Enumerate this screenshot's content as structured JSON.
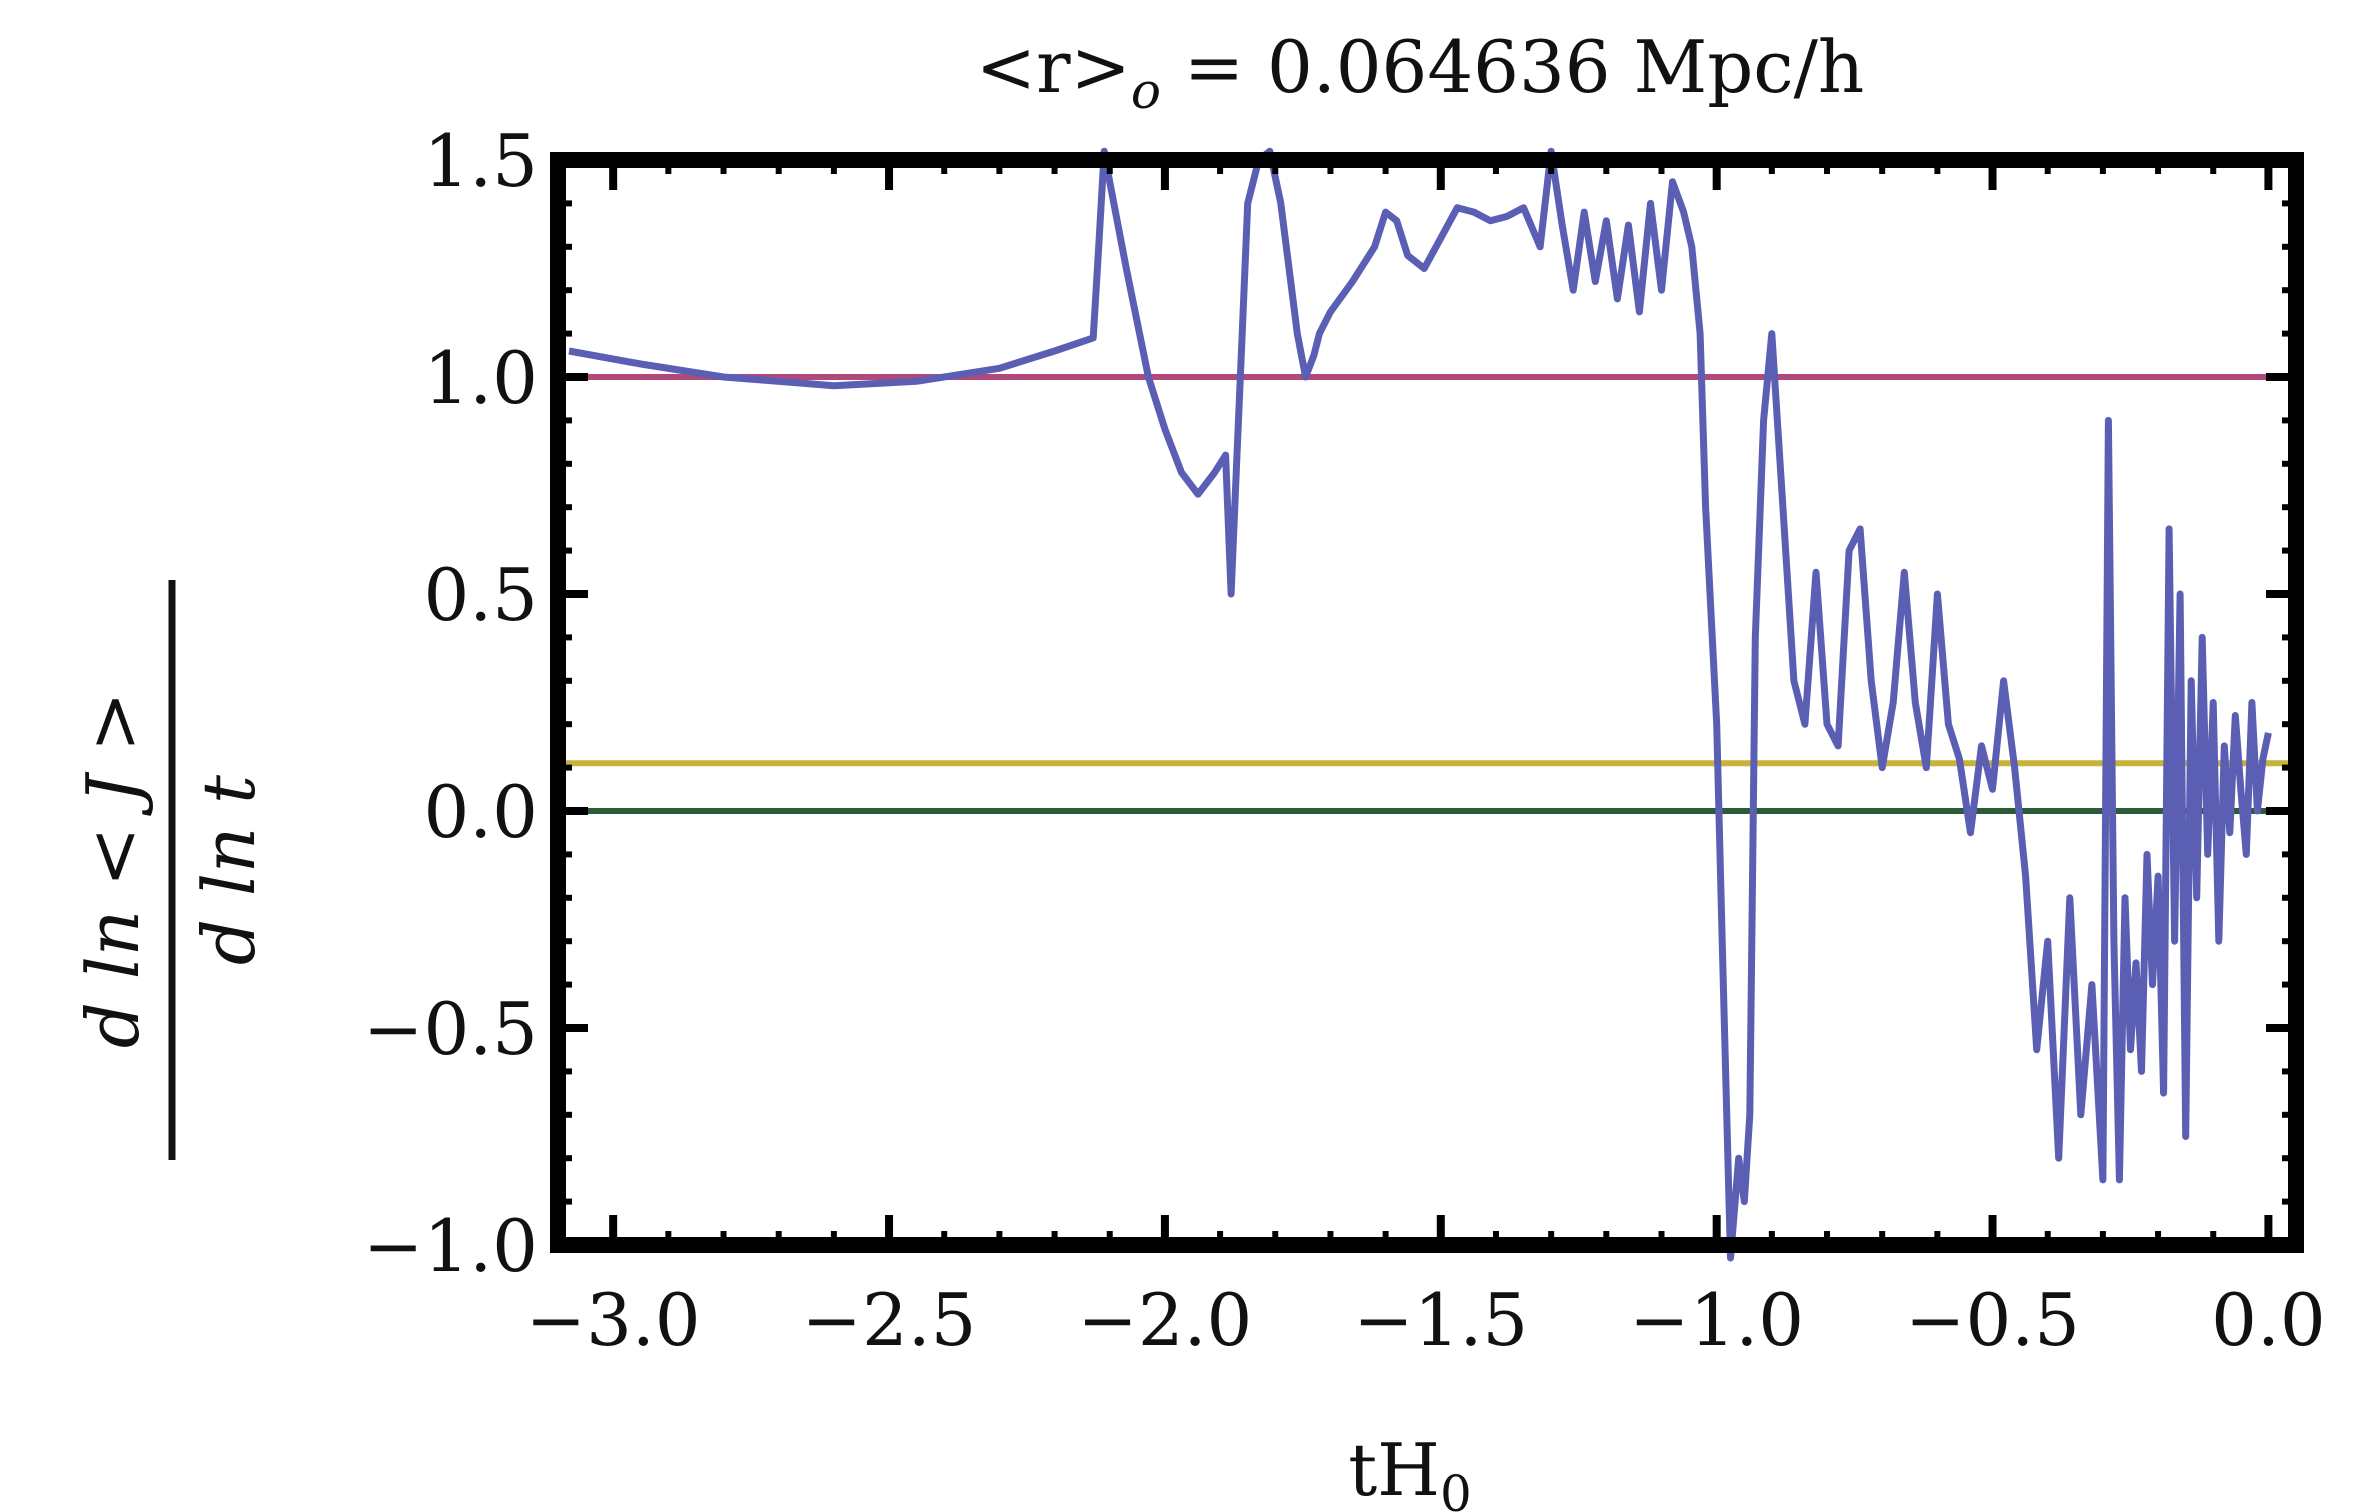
{
  "chart_data": {
    "type": "line",
    "title_prefix": "<r>",
    "title_subscript": "o",
    "title_value": " = 0.064636 Mpc/h",
    "xlabel_main": "tH",
    "xlabel_sub": "0",
    "ylabel_numerator": "d ln < J >",
    "ylabel_denominator": "d ln t",
    "xlim": [
      -3.1,
      0.05
    ],
    "ylim": [
      -1.0,
      1.5
    ],
    "xticks": [
      -3.0,
      -2.5,
      -2.0,
      -1.5,
      -1.0,
      -0.5,
      0.0
    ],
    "xtick_labels": [
      "−3.0",
      "−2.5",
      "−2.0",
      "−1.5",
      "−1.0",
      "−0.5",
      "0.0"
    ],
    "yticks": [
      -1.0,
      -0.5,
      0.0,
      0.5,
      1.0,
      1.5
    ],
    "ytick_labels": [
      "−1.0",
      "−0.5",
      "0.0",
      "0.5",
      "1.0",
      "1.5"
    ],
    "grid": false,
    "legend": "none",
    "colors": {
      "main_series": "#5b5fb4",
      "ref_one": "#b04a7a",
      "ref_gold": "#c8b33a",
      "ref_zero": "#2f5a3a"
    },
    "reference_lines": [
      {
        "y": 1.0,
        "color": "#b04a7a"
      },
      {
        "y": 0.11,
        "color": "#c8b33a"
      },
      {
        "y": 0.0,
        "color": "#2f5a3a"
      }
    ],
    "series": [
      {
        "x": [
          -3.08,
          -2.95,
          -2.8,
          -2.6,
          -2.45,
          -2.3,
          -2.2,
          -2.13,
          -2.12,
          -2.11,
          -2.1,
          -2.07,
          -2.03,
          -2.0,
          -1.97,
          -1.94,
          -1.91,
          -1.89,
          -1.88,
          -1.87,
          -1.86,
          -1.85,
          -1.83,
          -1.81,
          -1.79,
          -1.78,
          -1.77,
          -1.76,
          -1.745,
          -1.73,
          -1.72,
          -1.7,
          -1.66,
          -1.62,
          -1.6,
          -1.58,
          -1.56,
          -1.53,
          -1.5,
          -1.47,
          -1.44,
          -1.41,
          -1.38,
          -1.35,
          -1.32,
          -1.3,
          -1.28,
          -1.26,
          -1.24,
          -1.22,
          -1.2,
          -1.18,
          -1.16,
          -1.14,
          -1.12,
          -1.1,
          -1.08,
          -1.06,
          -1.045,
          -1.03,
          -1.02,
          -1.0,
          -0.99,
          -0.975,
          -0.96,
          -0.95,
          -0.94,
          -0.93,
          -0.915,
          -0.9,
          -0.88,
          -0.86,
          -0.84,
          -0.82,
          -0.8,
          -0.78,
          -0.76,
          -0.74,
          -0.72,
          -0.7,
          -0.68,
          -0.66,
          -0.64,
          -0.62,
          -0.6,
          -0.58,
          -0.56,
          -0.54,
          -0.52,
          -0.5,
          -0.48,
          -0.46,
          -0.44,
          -0.42,
          -0.4,
          -0.38,
          -0.36,
          -0.34,
          -0.32,
          -0.3,
          -0.29,
          -0.28,
          -0.27,
          -0.26,
          -0.25,
          -0.24,
          -0.23,
          -0.22,
          -0.21,
          -0.2,
          -0.19,
          -0.18,
          -0.17,
          -0.16,
          -0.15,
          -0.14,
          -0.13,
          -0.12,
          -0.11,
          -0.1,
          -0.09,
          -0.08,
          -0.07,
          -0.06,
          -0.05,
          -0.04,
          -0.03,
          -0.02,
          -0.01,
          0.0
        ],
        "y": [
          1.06,
          1.03,
          1.0,
          0.98,
          0.99,
          1.02,
          1.06,
          1.09,
          1.3,
          1.52,
          1.45,
          1.25,
          1.0,
          0.88,
          0.78,
          0.73,
          0.78,
          0.82,
          0.5,
          0.8,
          1.1,
          1.4,
          1.5,
          1.52,
          1.4,
          1.3,
          1.2,
          1.1,
          1.0,
          1.05,
          1.1,
          1.15,
          1.22,
          1.3,
          1.38,
          1.36,
          1.28,
          1.25,
          1.32,
          1.39,
          1.38,
          1.36,
          1.37,
          1.39,
          1.3,
          1.52,
          1.35,
          1.2,
          1.38,
          1.22,
          1.36,
          1.18,
          1.35,
          1.15,
          1.4,
          1.2,
          1.45,
          1.38,
          1.3,
          1.1,
          0.7,
          0.2,
          -0.3,
          -1.05,
          -0.8,
          -0.9,
          -0.7,
          0.4,
          0.9,
          1.1,
          0.7,
          0.3,
          0.2,
          0.55,
          0.2,
          0.15,
          0.6,
          0.65,
          0.3,
          0.1,
          0.25,
          0.55,
          0.25,
          0.1,
          0.5,
          0.2,
          0.12,
          -0.05,
          0.15,
          0.05,
          0.3,
          0.1,
          -0.15,
          -0.55,
          -0.3,
          -0.8,
          -0.2,
          -0.7,
          -0.4,
          -0.85,
          0.9,
          -0.3,
          -0.85,
          -0.2,
          -0.55,
          -0.35,
          -0.6,
          -0.1,
          -0.4,
          -0.15,
          -0.65,
          0.65,
          -0.3,
          0.5,
          -0.75,
          0.3,
          -0.2,
          0.4,
          -0.1,
          0.25,
          -0.3,
          0.15,
          -0.05,
          0.22,
          0.05,
          -0.1,
          0.25,
          0.0,
          0.12,
          0.18
        ]
      }
    ]
  }
}
